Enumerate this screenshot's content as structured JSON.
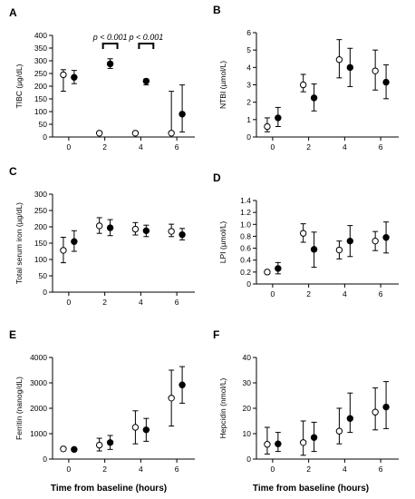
{
  "xlabel_bottom": "Time from baseline (hours)",
  "chart_data": [
    {
      "id": "A",
      "type": "scatter",
      "letter": "A",
      "ylabel": "TIBC (µg/dL)",
      "ylim": [
        0,
        400
      ],
      "yticks": [
        0,
        50,
        100,
        150,
        200,
        250,
        300,
        350,
        400
      ],
      "xticks": [
        0,
        2,
        4,
        6
      ],
      "xlim": [
        -0.9,
        7
      ],
      "annotations": [
        {
          "text": "p < 0.001",
          "x1": 1.9,
          "x2": 2.7
        },
        {
          "text": "p < 0.001",
          "x1": 3.9,
          "x2": 4.7
        }
      ],
      "series": [
        {
          "marker": "open",
          "points": [
            {
              "x": -0.3,
              "y": 245,
              "lo": 180,
              "hi": 265
            },
            {
              "x": 1.7,
              "y": 15,
              "lo": 15,
              "hi": 15
            },
            {
              "x": 3.7,
              "y": 15,
              "lo": 15,
              "hi": 15
            },
            {
              "x": 5.7,
              "y": 15,
              "lo": 15,
              "hi": 180
            }
          ]
        },
        {
          "marker": "filled",
          "points": [
            {
              "x": 0.3,
              "y": 235,
              "lo": 210,
              "hi": 262
            },
            {
              "x": 2.3,
              "y": 288,
              "lo": 270,
              "hi": 308
            },
            {
              "x": 4.3,
              "y": 220,
              "lo": 205,
              "hi": 228
            },
            {
              "x": 6.3,
              "y": 90,
              "lo": 20,
              "hi": 205
            }
          ]
        }
      ]
    },
    {
      "id": "B",
      "type": "scatter",
      "letter": "B",
      "ylabel": "NTBI (µmol/L)",
      "ylim": [
        0,
        6
      ],
      "yticks": [
        0,
        1,
        2,
        3,
        4,
        5,
        6
      ],
      "xticks": [
        0,
        2,
        4,
        6
      ],
      "xlim": [
        -0.9,
        7
      ],
      "series": [
        {
          "marker": "open",
          "points": [
            {
              "x": -0.3,
              "y": 0.6,
              "lo": 0.3,
              "hi": 1.1
            },
            {
              "x": 1.7,
              "y": 3.0,
              "lo": 2.6,
              "hi": 3.6
            },
            {
              "x": 3.7,
              "y": 4.45,
              "lo": 3.4,
              "hi": 5.6
            },
            {
              "x": 5.7,
              "y": 3.8,
              "lo": 2.7,
              "hi": 5.0
            }
          ]
        },
        {
          "marker": "filled",
          "points": [
            {
              "x": 0.3,
              "y": 1.1,
              "lo": 0.6,
              "hi": 1.7
            },
            {
              "x": 2.3,
              "y": 2.25,
              "lo": 1.5,
              "hi": 3.05
            },
            {
              "x": 4.3,
              "y": 4.0,
              "lo": 2.9,
              "hi": 5.1
            },
            {
              "x": 6.3,
              "y": 3.15,
              "lo": 2.2,
              "hi": 4.15
            }
          ]
        }
      ]
    },
    {
      "id": "C",
      "type": "scatter",
      "letter": "C",
      "ylabel": "Total serum iron (µg/dL)",
      "ylim": [
        0,
        300
      ],
      "yticks": [
        0,
        50,
        100,
        150,
        200,
        250,
        300
      ],
      "xticks": [
        0,
        2,
        4,
        6
      ],
      "xlim": [
        -0.9,
        7
      ],
      "series": [
        {
          "marker": "open",
          "points": [
            {
              "x": -0.3,
              "y": 128,
              "lo": 90,
              "hi": 168
            },
            {
              "x": 1.7,
              "y": 203,
              "lo": 180,
              "hi": 228
            },
            {
              "x": 3.7,
              "y": 193,
              "lo": 175,
              "hi": 213
            },
            {
              "x": 5.7,
              "y": 186,
              "lo": 170,
              "hi": 208
            }
          ]
        },
        {
          "marker": "filled",
          "points": [
            {
              "x": 0.3,
              "y": 155,
              "lo": 125,
              "hi": 188
            },
            {
              "x": 2.3,
              "y": 197,
              "lo": 173,
              "hi": 222
            },
            {
              "x": 4.3,
              "y": 188,
              "lo": 170,
              "hi": 205
            },
            {
              "x": 6.3,
              "y": 176,
              "lo": 160,
              "hi": 195
            }
          ]
        }
      ]
    },
    {
      "id": "D",
      "type": "scatter",
      "letter": "D",
      "ylabel": "LPI (µmol/L)",
      "ylim": [
        0,
        1.4
      ],
      "yticks": [
        0,
        0.2,
        0.4,
        0.6,
        0.8,
        1.0,
        1.2,
        1.4
      ],
      "ytick_labels": [
        "0",
        "0.2",
        "0.4",
        "0.6",
        "0.8",
        "1.0",
        "1.2",
        "1.4"
      ],
      "xticks": [
        0,
        2,
        4,
        6
      ],
      "xlim": [
        -0.9,
        7
      ],
      "series": [
        {
          "marker": "open",
          "points": [
            {
              "x": -0.3,
              "y": 0.2,
              "lo": 0.2,
              "hi": 0.2
            },
            {
              "x": 1.7,
              "y": 0.85,
              "lo": 0.7,
              "hi": 1.01
            },
            {
              "x": 3.7,
              "y": 0.57,
              "lo": 0.42,
              "hi": 0.72
            },
            {
              "x": 5.7,
              "y": 0.72,
              "lo": 0.56,
              "hi": 0.88
            }
          ]
        },
        {
          "marker": "filled",
          "points": [
            {
              "x": 0.3,
              "y": 0.26,
              "lo": 0.17,
              "hi": 0.36
            },
            {
              "x": 2.3,
              "y": 0.58,
              "lo": 0.28,
              "hi": 0.87
            },
            {
              "x": 4.3,
              "y": 0.72,
              "lo": 0.46,
              "hi": 0.98
            },
            {
              "x": 6.3,
              "y": 0.78,
              "lo": 0.52,
              "hi": 1.04
            }
          ]
        }
      ]
    },
    {
      "id": "E",
      "type": "scatter",
      "letter": "E",
      "ylabel": "Ferritin (nanog/dL)",
      "ylim": [
        0,
        4000
      ],
      "yticks": [
        0,
        1000,
        2000,
        3000,
        4000
      ],
      "xticks": [
        0,
        2,
        4,
        6
      ],
      "xlim": [
        -0.9,
        7
      ],
      "series": [
        {
          "marker": "open",
          "points": [
            {
              "x": -0.3,
              "y": 400,
              "lo": 400,
              "hi": 400
            },
            {
              "x": 1.7,
              "y": 550,
              "lo": 320,
              "hi": 820
            },
            {
              "x": 3.7,
              "y": 1250,
              "lo": 600,
              "hi": 1900
            },
            {
              "x": 5.7,
              "y": 2400,
              "lo": 1300,
              "hi": 3500
            }
          ]
        },
        {
          "marker": "filled",
          "points": [
            {
              "x": 0.3,
              "y": 380,
              "lo": 380,
              "hi": 380
            },
            {
              "x": 2.3,
              "y": 650,
              "lo": 380,
              "hi": 930
            },
            {
              "x": 4.3,
              "y": 1150,
              "lo": 700,
              "hi": 1600
            },
            {
              "x": 6.3,
              "y": 2920,
              "lo": 2200,
              "hi": 3640
            }
          ]
        }
      ]
    },
    {
      "id": "F",
      "type": "scatter",
      "letter": "F",
      "ylabel": "Hepcidin (nmol/L)",
      "ylim": [
        0,
        40
      ],
      "yticks": [
        0,
        10,
        20,
        30,
        40
      ],
      "xticks": [
        0,
        2,
        4,
        6
      ],
      "xlim": [
        -0.9,
        7
      ],
      "series": [
        {
          "marker": "open",
          "points": [
            {
              "x": -0.3,
              "y": 5.8,
              "lo": 2.0,
              "hi": 12.5
            },
            {
              "x": 1.7,
              "y": 6.5,
              "lo": 1.5,
              "hi": 15.0
            },
            {
              "x": 3.7,
              "y": 11.0,
              "lo": 6.0,
              "hi": 20.0
            },
            {
              "x": 5.7,
              "y": 18.5,
              "lo": 11.5,
              "hi": 28.0
            }
          ]
        },
        {
          "marker": "filled",
          "points": [
            {
              "x": 0.3,
              "y": 6.0,
              "lo": 3.0,
              "hi": 10.5
            },
            {
              "x": 2.3,
              "y": 8.5,
              "lo": 3.0,
              "hi": 14.5
            },
            {
              "x": 4.3,
              "y": 16.0,
              "lo": 10.5,
              "hi": 26.0
            },
            {
              "x": 6.3,
              "y": 20.5,
              "lo": 12.0,
              "hi": 30.5
            }
          ]
        }
      ]
    }
  ]
}
